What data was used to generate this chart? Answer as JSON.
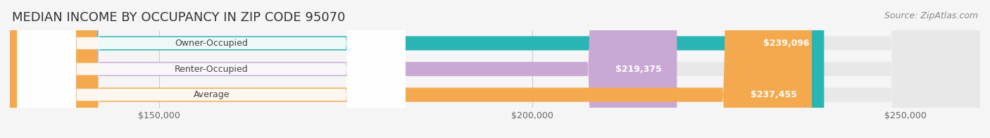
{
  "title": "MEDIAN INCOME BY OCCUPANCY IN ZIP CODE 95070",
  "source": "Source: ZipAtlas.com",
  "categories": [
    "Owner-Occupied",
    "Renter-Occupied",
    "Average"
  ],
  "values": [
    239096,
    219375,
    237455
  ],
  "value_labels": [
    "$239,096",
    "$219,375",
    "$237,455"
  ],
  "bar_colors": [
    "#2ab5b5",
    "#c9a8d4",
    "#f5a94e"
  ],
  "bar_colors_dark": [
    "#1a9a9a",
    "#b090c0",
    "#e09030"
  ],
  "x_min": 130000,
  "x_max": 260000,
  "xticks": [
    150000,
    200000,
    250000
  ],
  "xtick_labels": [
    "$150,000",
    "$200,000",
    "$250,000"
  ],
  "background_color": "#f5f5f5",
  "bar_bg_color": "#e8e8e8",
  "bar_height": 0.55,
  "title_fontsize": 13,
  "source_fontsize": 9,
  "label_fontsize": 9,
  "value_fontsize": 9,
  "tick_fontsize": 9
}
